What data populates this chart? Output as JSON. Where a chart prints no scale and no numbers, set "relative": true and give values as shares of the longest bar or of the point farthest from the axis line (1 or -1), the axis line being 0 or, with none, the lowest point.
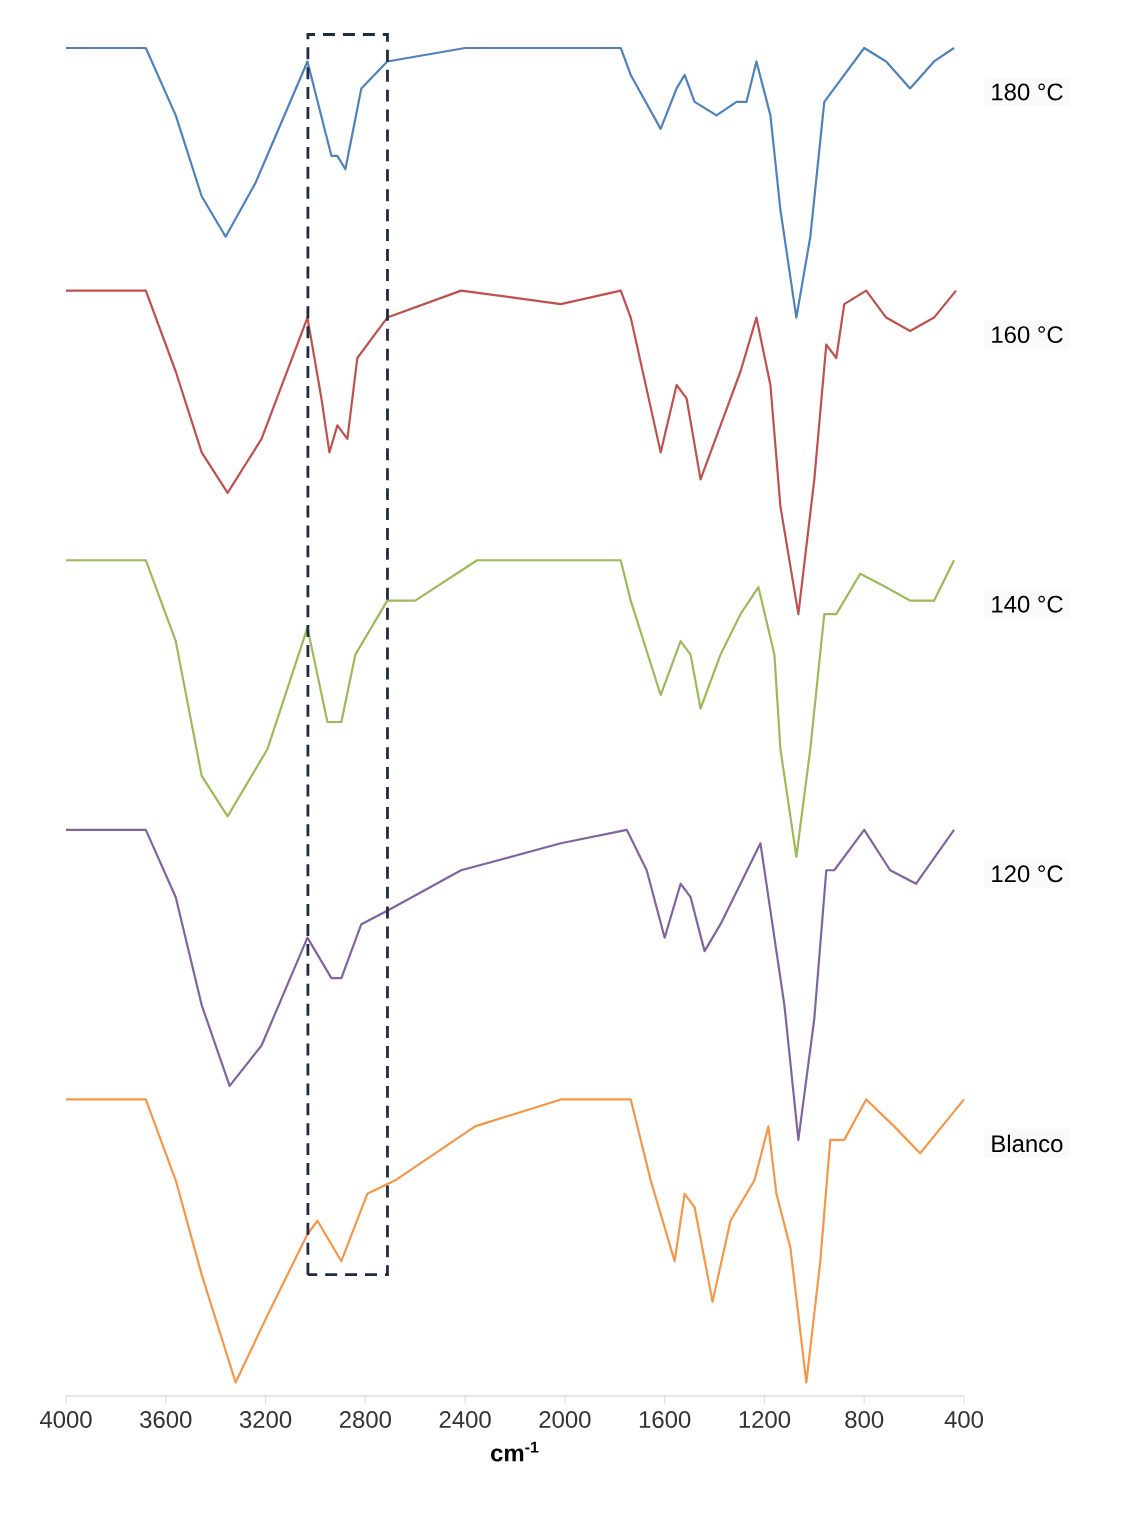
{
  "chart_data": {
    "type": "line",
    "relative": true,
    "xlabel": "cm$^{-1}$",
    "xlim": [
      4000,
      400
    ],
    "xticks": [
      4000,
      3600,
      3200,
      2800,
      2400,
      2000,
      1600,
      1200,
      800,
      400
    ],
    "legend": false,
    "grid": false,
    "marker": "none",
    "line_style": "solid",
    "series": [
      {
        "name": "180 °C",
        "color": "#4f81bd",
        "x": [
          4000,
          3680,
          3560,
          3456,
          3360,
          3240,
          3032,
          2936,
          2912,
          2880,
          2816,
          2712,
          2400,
          2016,
          1856,
          1776,
          1736,
          1616,
          1552,
          1520,
          1480,
          1392,
          1312,
          1272,
          1232,
          1176,
          1136,
          1072,
          1016,
          960,
          920,
          800,
          712,
          616,
          520,
          440
        ],
        "values": [
          1.0,
          1.0,
          0.95,
          0.89,
          0.86,
          0.9,
          0.99,
          0.92,
          0.92,
          0.91,
          0.97,
          0.99,
          1.0,
          1.0,
          1.0,
          1.0,
          0.98,
          0.94,
          0.97,
          0.98,
          0.96,
          0.95,
          0.96,
          0.96,
          0.99,
          0.95,
          0.88,
          0.8,
          0.86,
          0.96,
          0.97,
          1.0,
          0.99,
          0.97,
          0.99,
          1.0
        ]
      },
      {
        "name": "160 °C",
        "color": "#c0504d",
        "x": [
          4000,
          3680,
          3560,
          3456,
          3352,
          3216,
          3032,
          2976,
          2944,
          2912,
          2872,
          2832,
          2712,
          2416,
          2016,
          1776,
          1736,
          1616,
          1552,
          1512,
          1456,
          1376,
          1296,
          1232,
          1176,
          1136,
          1064,
          1000,
          952,
          912,
          880,
          792,
          712,
          616,
          520,
          432
        ],
        "values": [
          0.82,
          0.82,
          0.76,
          0.7,
          0.67,
          0.71,
          0.8,
          0.74,
          0.7,
          0.72,
          0.71,
          0.77,
          0.8,
          0.82,
          0.81,
          0.82,
          0.8,
          0.7,
          0.75,
          0.74,
          0.68,
          0.72,
          0.76,
          0.8,
          0.75,
          0.66,
          0.58,
          0.68,
          0.78,
          0.77,
          0.81,
          0.82,
          0.8,
          0.79,
          0.8,
          0.82
        ]
      },
      {
        "name": "140 °C",
        "color": "#9bbb59",
        "x": [
          4000,
          3680,
          3560,
          3456,
          3352,
          3192,
          3032,
          2952,
          2896,
          2840,
          2712,
          2600,
          2352,
          1856,
          1776,
          1736,
          1616,
          1536,
          1496,
          1456,
          1376,
          1296,
          1224,
          1160,
          1136,
          1072,
          1016,
          960,
          912,
          816,
          712,
          616,
          520,
          440
        ],
        "values": [
          0.62,
          0.62,
          0.56,
          0.46,
          0.43,
          0.48,
          0.57,
          0.5,
          0.5,
          0.55,
          0.59,
          0.59,
          0.62,
          0.62,
          0.62,
          0.59,
          0.52,
          0.56,
          0.55,
          0.51,
          0.55,
          0.58,
          0.6,
          0.55,
          0.48,
          0.4,
          0.48,
          0.58,
          0.58,
          0.61,
          0.6,
          0.59,
          0.59,
          0.62
        ]
      },
      {
        "name": "120 °C",
        "color": "#8064a2",
        "x": [
          4000,
          3680,
          3560,
          3456,
          3344,
          3216,
          3032,
          2936,
          2896,
          2816,
          2712,
          2416,
          2016,
          1752,
          1672,
          1600,
          1536,
          1496,
          1440,
          1376,
          1296,
          1216,
          1176,
          1120,
          1064,
          1000,
          952,
          920,
          800,
          696,
          592,
          440
        ],
        "values": [
          0.42,
          0.42,
          0.37,
          0.29,
          0.23,
          0.26,
          0.34,
          0.31,
          0.31,
          0.35,
          0.36,
          0.39,
          0.41,
          0.42,
          0.39,
          0.34,
          0.38,
          0.37,
          0.33,
          0.35,
          0.38,
          0.41,
          0.36,
          0.29,
          0.19,
          0.28,
          0.39,
          0.39,
          0.42,
          0.39,
          0.38,
          0.42
        ]
      },
      {
        "name": "Blanco",
        "color": "#f79646",
        "x": [
          4000,
          3680,
          3560,
          3456,
          3320,
          3192,
          3032,
          2992,
          2896,
          2792,
          2680,
          2360,
          2016,
          1736,
          1656,
          1560,
          1520,
          1480,
          1408,
          1336,
          1240,
          1184,
          1152,
          1096,
          1032,
          976,
          936,
          880,
          792,
          680,
          576,
          400
        ],
        "values": [
          0.22,
          0.22,
          0.16,
          0.09,
          0.01,
          0.06,
          0.12,
          0.13,
          0.1,
          0.15,
          0.16,
          0.2,
          0.22,
          0.22,
          0.16,
          0.1,
          0.15,
          0.14,
          0.07,
          0.13,
          0.16,
          0.2,
          0.15,
          0.11,
          0.01,
          0.1,
          0.19,
          0.19,
          0.22,
          0.2,
          0.18,
          0.22
        ]
      }
    ]
  }
}
